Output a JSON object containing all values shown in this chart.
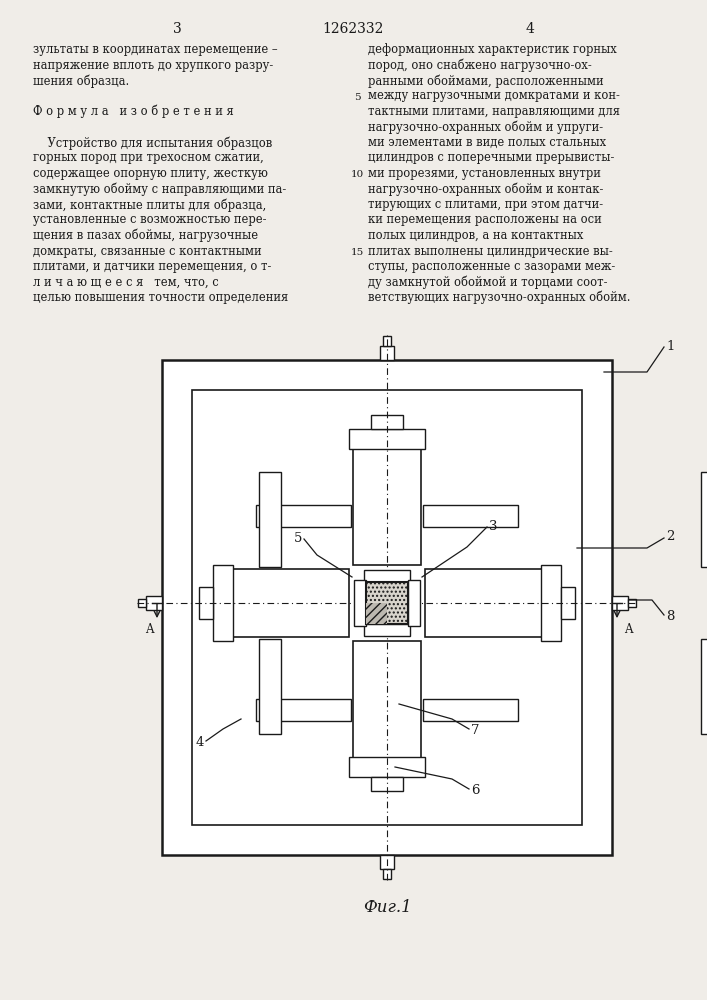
{
  "page_color": "#f0ede8",
  "line_color": "#1a1a1a",
  "patent_num": "1262332",
  "page_left": "3",
  "page_right": "4",
  "fig_caption": "Фиг.1",
  "left_col": [
    "зультаты в координатах перемещение –",
    "напряжение вплоть до хрупкого разру-",
    "шения образца.",
    "",
    "Ф о р м у л а   и з о б р е т е н и я",
    "",
    "    Устройство для испытания образцов",
    "горных пород при трехосном сжатии,",
    "содержащее опорную плиту, жесткую",
    "замкнутую обойму с направляющими па-",
    "зами, контактные плиты для образца,",
    "установленные с возможностью пере-",
    "щения в пазах обоймы, нагрузочные",
    "домкраты, связанные с контактными",
    "плитами, и датчики перемещения, о т-",
    "л и ч а ю щ е е с я   тем, что, с",
    "целью повышения точности определения"
  ],
  "right_col": [
    "деформационных характеристик горных",
    "пород, оно снабжено нагрузочно-ох-",
    "ранными обоймами, расположенными",
    "между нагрузочными домкратами и кон-",
    "тактными плитами, направляющими для",
    "нагрузочно-охранных обойм и упруги-",
    "ми элементами в виде полых стальных",
    "цилиндров с поперечными прерывисты-",
    "ми прорезями, установленных внутри",
    "нагрузочно-охранных обойм и контак-",
    "тирующих с плитами, при этом датчи-",
    "ки перемещения расположены на оси",
    "полых цилиндров, а на контактных",
    "плитах выполнены цилиндрические вы-",
    "ступы, расположенные с зазорами меж-",
    "ду замкнутой обоймой и торцами соот-",
    "ветствующих нагрузочно-охранных обойм."
  ]
}
